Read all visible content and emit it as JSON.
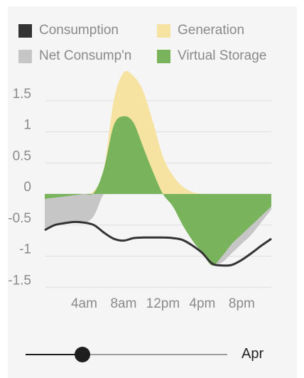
{
  "legend": {
    "items": [
      {
        "label": "Consumption",
        "color": "#333333"
      },
      {
        "label": "Generation",
        "color": "#f7e3a1"
      },
      {
        "label": "Net Consump'n",
        "color": "#c6c6c6"
      },
      {
        "label": "Virtual Storage",
        "color": "#79b45c"
      }
    ]
  },
  "slider": {
    "label": "Apr",
    "value_fraction": 0.28
  },
  "chart_data": {
    "type": "area",
    "ylim": [
      -1.6,
      2.0
    ],
    "xlim": [
      0,
      23
    ],
    "yticks": [
      1.5,
      1,
      0.5,
      0,
      -0.5,
      -1,
      -1.5
    ],
    "ytick_labels": [
      "1.5",
      "1",
      "0.5",
      "0",
      "-0.5",
      "-1",
      "-1.5"
    ],
    "xticks": [
      4,
      8,
      12,
      16,
      20
    ],
    "xtick_labels": [
      "4am",
      "8am",
      "12pm",
      "4pm",
      "8pm"
    ],
    "grid": true,
    "x": [
      0,
      1,
      2,
      3,
      4,
      5,
      6,
      7,
      8,
      9,
      10,
      11,
      12,
      13,
      14,
      15,
      16,
      17,
      18,
      19,
      20,
      21,
      22,
      23
    ],
    "series": [
      {
        "name": "Generation",
        "color": "#f7e3a1",
        "values": [
          0,
          0,
          0,
          0,
          0,
          0.05,
          0.4,
          1.5,
          1.95,
          1.9,
          1.65,
          1.15,
          0.6,
          0.3,
          0.12,
          0.03,
          0,
          0,
          0,
          0,
          0,
          0,
          0,
          0
        ]
      },
      {
        "name": "Virtual Storage",
        "color": "#79b45c",
        "values": [
          -0.08,
          -0.06,
          -0.04,
          -0.02,
          0,
          0.02,
          0.4,
          1.1,
          1.25,
          1.15,
          0.75,
          0.35,
          0,
          -0.2,
          -0.5,
          -0.75,
          -0.95,
          -1.15,
          -1.0,
          -0.8,
          -0.65,
          -0.5,
          -0.35,
          -0.2
        ]
      },
      {
        "name": "Net Consump'n",
        "color": "#c6c6c6",
        "values": [
          -0.55,
          -0.5,
          -0.47,
          -0.46,
          -0.47,
          -0.35,
          0,
          0,
          0,
          0,
          0,
          0,
          0,
          -0.05,
          -0.25,
          -0.55,
          -0.9,
          -1.15,
          -1.1,
          -0.95,
          -0.8,
          -0.65,
          -0.45,
          -0.25
        ]
      },
      {
        "name": "Consumption",
        "color": "#333333",
        "values": [
          -0.58,
          -0.5,
          -0.47,
          -0.45,
          -0.46,
          -0.5,
          -0.62,
          -0.72,
          -0.75,
          -0.71,
          -0.7,
          -0.7,
          -0.7,
          -0.71,
          -0.74,
          -0.83,
          -0.95,
          -1.12,
          -1.15,
          -1.14,
          -1.06,
          -0.95,
          -0.83,
          -0.72
        ]
      }
    ]
  }
}
